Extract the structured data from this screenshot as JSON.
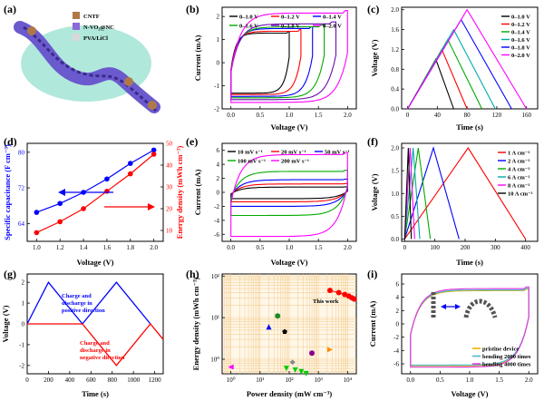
{
  "panels": {
    "a": {
      "label": "(a)",
      "legend": [
        {
          "name": "CNTF",
          "color": "#b07848"
        },
        {
          "name": "N-VO₂@NC",
          "color": "#8a6ad8"
        },
        {
          "name": "PVA/LiCl",
          "color": "#d8d8d8"
        }
      ],
      "colors": {
        "background": "#a8e6d8",
        "fiber": "#6a5acd",
        "fiber_dark": "#3a2a8a",
        "cap": "#b07848"
      }
    },
    "b": {
      "label": "(b)",
      "xlabel": "Voltage (V)",
      "ylabel": "Current (mA)",
      "xticks": [
        "0.0",
        "0.5",
        "1.0",
        "1.5",
        "2.0"
      ],
      "yticks": [
        "-2",
        "-1",
        "0",
        "1",
        "2"
      ]
    },
    "c": {
      "label": "(c)",
      "xlabel": "Time (s)",
      "ylabel": "Voltage (V)",
      "xticks": [
        "0",
        "40",
        "80",
        "120",
        "160"
      ],
      "yticks": [
        "0.0",
        "0.4",
        "0.8",
        "1.2",
        "1.6",
        "2.0"
      ]
    },
    "d": {
      "label": "(d)",
      "xlabel": "Voltage (V)",
      "ylabel_left": "Specific capacitance (F cm⁻³)",
      "ylabel_right": "Energy density (mWh cm⁻³)",
      "xticks": [
        "1.0",
        "1.2",
        "1.4",
        "1.6",
        "1.8",
        "2.0"
      ],
      "yticks_left": [
        "64",
        "72",
        "80"
      ],
      "yticks_right": [
        "10",
        "20",
        "30",
        "40",
        "50"
      ]
    },
    "e": {
      "label": "(e)",
      "xlabel": "Voltage (V)",
      "ylabel": "Current (mA)",
      "xticks": [
        "0.0",
        "0.5",
        "1.0",
        "1.5",
        "2.0"
      ],
      "yticks": [
        "-6",
        "-4",
        "-2",
        "0",
        "2",
        "4",
        "6"
      ]
    },
    "f": {
      "label": "(f)",
      "xlabel": "Time (s)",
      "ylabel": "Voltage (V)",
      "xticks": [
        "0",
        "100",
        "200",
        "300",
        "400"
      ],
      "yticks": [
        "0.0",
        "0.5",
        "1.0",
        "1.5",
        "2.0"
      ]
    },
    "g": {
      "label": "(g)",
      "xlabel": "Time (s)",
      "ylabel": "Voltage (V)",
      "xticks": [
        "0",
        "200",
        "400",
        "600",
        "800",
        "1000",
        "1200"
      ],
      "yticks": [
        "-2",
        "-1",
        "0",
        "1",
        "2"
      ],
      "annot_pos": [
        "Charge and",
        "discharge in",
        "positive direction"
      ],
      "annot_neg": [
        "Charge and",
        "discharge in",
        "negative direction"
      ]
    },
    "h": {
      "label": "(h)",
      "xlabel": "Power density (mW cm⁻³)",
      "ylabel": "Energy density (mWh cm⁻³)",
      "xticks": [
        "10⁰",
        "10¹",
        "10²",
        "10³",
        "10⁴"
      ],
      "yticks": [
        "10⁰",
        "10¹",
        "10²"
      ],
      "this_work": "This work"
    },
    "i": {
      "label": "(i)",
      "xlabel": "Voltage (V)",
      "ylabel": "Current (mA)",
      "xticks": [
        "0.0",
        "0.5",
        "1.0",
        "1.5",
        "2.0"
      ],
      "yticks": [
        "-6",
        "-4",
        "-2",
        "0",
        "2",
        "4",
        "6"
      ],
      "legend": [
        "pristine device",
        "bending 2000 times",
        "bending 4000 times"
      ]
    }
  },
  "chart_data": [
    {
      "panel": "b",
      "type": "line",
      "xlabel": "Voltage (V)",
      "ylabel": "Current (mA)",
      "xlim": [
        -0.15,
        2.15
      ],
      "ylim": [
        -2,
        2.4
      ],
      "series": [
        {
          "name": "0–1.0 V",
          "color": "#000000",
          "vmax": 1.0,
          "top": 1.28,
          "bottom": -1.32
        },
        {
          "name": "0–1.2 V",
          "color": "#ff0000",
          "vmax": 1.2,
          "top": 1.36,
          "bottom": -1.38
        },
        {
          "name": "0–1.4 V",
          "color": "#0000ff",
          "vmax": 1.4,
          "top": 1.48,
          "bottom": -1.46
        },
        {
          "name": "0–1.6 V",
          "color": "#00aa00",
          "vmax": 1.6,
          "top": 1.55,
          "bottom": -1.52
        },
        {
          "name": "0–1.8 V",
          "color": "#6a0dad",
          "vmax": 1.8,
          "top": 1.68,
          "bottom": -1.6
        },
        {
          "name": "0–2.0 V",
          "color": "#ff00ff",
          "vmax": 2.0,
          "top": 2.15,
          "bottom": -1.72
        }
      ]
    },
    {
      "panel": "c",
      "type": "line",
      "xlabel": "Time (s)",
      "ylabel": "Voltage (V)",
      "xlim": [
        -8,
        175
      ],
      "ylim": [
        0,
        2.05
      ],
      "series": [
        {
          "name": "0–1.0 V",
          "color": "#000000",
          "vmax": 1.0,
          "tpeak": 38,
          "tend": 62
        },
        {
          "name": "0–1.2 V",
          "color": "#ff0000",
          "vmax": 1.2,
          "tpeak": 46,
          "tend": 80
        },
        {
          "name": "0–1.4 V",
          "color": "#00aa00",
          "vmax": 1.4,
          "tpeak": 54,
          "tend": 100
        },
        {
          "name": "0–1.6 V",
          "color": "#00aaaa",
          "vmax": 1.6,
          "tpeak": 62,
          "tend": 118
        },
        {
          "name": "0–1.8 V",
          "color": "#0000ff",
          "vmax": 1.8,
          "tpeak": 72,
          "tend": 140
        },
        {
          "name": "0–2.0 V",
          "color": "#ff00ff",
          "vmax": 2.0,
          "tpeak": 80,
          "tend": 160
        }
      ]
    },
    {
      "panel": "d",
      "type": "line",
      "xlabel": "Voltage (V)",
      "x": [
        1.0,
        1.2,
        1.4,
        1.6,
        1.8,
        2.0
      ],
      "series": [
        {
          "name": "Specific capacitance",
          "axis": "left",
          "color": "#0000ff",
          "values": [
            66.5,
            68.5,
            71,
            74,
            77.5,
            80.5
          ],
          "ylim": [
            60,
            82
          ]
        },
        {
          "name": "Energy density",
          "axis": "right",
          "color": "#ff0000",
          "values": [
            9,
            14,
            20,
            28,
            36,
            45
          ],
          "ylim": [
            5,
            50
          ]
        }
      ]
    },
    {
      "panel": "e",
      "type": "line",
      "xlabel": "Voltage (V)",
      "ylabel": "Current (mA)",
      "xlim": [
        -0.15,
        2.15
      ],
      "ylim": [
        -7,
        7
      ],
      "series": [
        {
          "name": "10 mV s⁻¹",
          "color": "#000000",
          "top": 0.75,
          "bottom": -0.9
        },
        {
          "name": "20 mV s⁻¹",
          "color": "#ff0000",
          "top": 1.2,
          "bottom": -1.35
        },
        {
          "name": "50 mV s⁻¹",
          "color": "#0000ff",
          "top": 1.8,
          "bottom": -2.0
        },
        {
          "name": "100 mV s⁻¹",
          "color": "#00aa00",
          "top": 3.0,
          "bottom": -3.3
        },
        {
          "name": "200 mV s⁻¹",
          "color": "#ff00ff",
          "top": 5.4,
          "bottom": -6.3
        }
      ]
    },
    {
      "panel": "f",
      "type": "line",
      "xlabel": "Time (s)",
      "ylabel": "Voltage (V)",
      "xlim": [
        -10,
        440
      ],
      "ylim": [
        -0.05,
        2.1
      ],
      "series": [
        {
          "name": "1 A cm⁻³",
          "color": "#ff0000",
          "tpeak": 210,
          "tend": 400
        },
        {
          "name": "2 A cm⁻³",
          "color": "#0000ff",
          "tpeak": 95,
          "tend": 180
        },
        {
          "name": "4 A cm⁻³",
          "color": "#00aa00",
          "tpeak": 45,
          "tend": 85
        },
        {
          "name": "6 A cm⁻³",
          "color": "#00aaaa",
          "tpeak": 28,
          "tend": 50
        },
        {
          "name": "8 A cm⁻³",
          "color": "#ff00ff",
          "tpeak": 18,
          "tend": 33
        },
        {
          "name": "10 A cm⁻³",
          "color": "#000000",
          "tpeak": 12,
          "tend": 22
        }
      ]
    },
    {
      "panel": "g",
      "type": "line",
      "xlabel": "Time (s)",
      "ylabel": "Voltage (V)",
      "xlim": [
        0,
        1280
      ],
      "ylim": [
        -2.4,
        2.4
      ],
      "series": [
        {
          "name": "positive direction",
          "color": "#0000ff",
          "x": [
            0,
            200,
            520,
            840,
            1160
          ],
          "y": [
            0,
            2,
            0,
            2,
            0
          ]
        },
        {
          "name": "negative direction",
          "color": "#ff0000",
          "x": [
            0,
            520,
            840,
            1160,
            1280
          ],
          "y": [
            0,
            0,
            -2,
            0,
            -0.75
          ]
        }
      ]
    },
    {
      "panel": "h",
      "type": "scatter",
      "xlabel": "Power density (mW cm⁻³)",
      "ylabel": "Energy density (mWh cm⁻³)",
      "xlim_log": [
        -0.3,
        4.3
      ],
      "ylim_log": [
        -0.35,
        2.05
      ],
      "points": [
        {
          "x": 2500,
          "y": 45,
          "color": "#ff0000",
          "shape": "circle",
          "group": "This work"
        },
        {
          "x": 5000,
          "y": 40,
          "color": "#ff0000",
          "shape": "circle",
          "group": "This work"
        },
        {
          "x": 8000,
          "y": 36,
          "color": "#ff0000",
          "shape": "circle",
          "group": "This work"
        },
        {
          "x": 11000,
          "y": 33,
          "color": "#ff0000",
          "shape": "circle",
          "group": "This work"
        },
        {
          "x": 14000,
          "y": 30,
          "color": "#ff0000",
          "shape": "circle",
          "group": "This work"
        },
        {
          "x": 17000,
          "y": 28,
          "color": "#ff0000",
          "shape": "circle",
          "group": "This work"
        },
        {
          "x": 40,
          "y": 11,
          "color": "#228b22",
          "shape": "circle"
        },
        {
          "x": 20,
          "y": 6,
          "color": "#0000ff",
          "shape": "triangle"
        },
        {
          "x": 70,
          "y": 4.6,
          "color": "#000000",
          "shape": "pentagon"
        },
        {
          "x": 600,
          "y": 1.4,
          "color": "#8b008b",
          "shape": "circle"
        },
        {
          "x": 2500,
          "y": 1.7,
          "color": "#ff8c00",
          "shape": "triangle-right"
        },
        {
          "x": 1,
          "y": 0.65,
          "color": "#ff00ff",
          "shape": "triangle-left"
        },
        {
          "x": 130,
          "y": 0.85,
          "color": "#888888",
          "shape": "diamond"
        },
        {
          "x": 80,
          "y": 0.6,
          "color": "#00cc00",
          "shape": "triangle-down"
        },
        {
          "x": 160,
          "y": 0.55,
          "color": "#00cc00",
          "shape": "triangle-down"
        },
        {
          "x": 260,
          "y": 0.5,
          "color": "#00cc00",
          "shape": "triangle-down"
        },
        {
          "x": 380,
          "y": 0.45,
          "color": "#00cc00",
          "shape": "triangle-down"
        }
      ]
    },
    {
      "panel": "i",
      "type": "line",
      "xlabel": "Voltage (V)",
      "ylabel": "Current (mA)",
      "xlim": [
        -0.15,
        2.15
      ],
      "ylim": [
        -7.5,
        7.5
      ],
      "series": [
        {
          "name": "pristine device",
          "color": "#f0b000",
          "top": 5.0,
          "bottom": -6.3
        },
        {
          "name": "bending 2000 times",
          "color": "#4ab8c8",
          "top": 5.1,
          "bottom": -6.2
        },
        {
          "name": "bending 4000 times",
          "color": "#e040e0",
          "top": 5.3,
          "bottom": -6.5
        }
      ]
    }
  ]
}
